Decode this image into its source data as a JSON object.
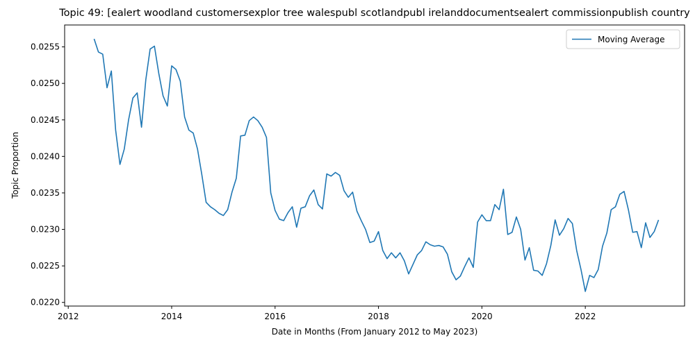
{
  "chart_data": {
    "type": "line",
    "title": "Topic 49: [ealert woodland customersexplor tree walespubl scotlandpubl irelanddocumentsealert commissionpublish country",
    "xlabel": "Date in Months (From January 2012 to May 2023)",
    "ylabel": "Topic Proportion",
    "xlim": [
      2011.93,
      2023.92
    ],
    "ylim": [
      0.02195,
      0.0258
    ],
    "x_ticks": [
      2012,
      2014,
      2016,
      2018,
      2020,
      2022
    ],
    "x_tick_labels": [
      "2012",
      "2014",
      "2016",
      "2018",
      "2020",
      "2022"
    ],
    "y_ticks": [
      0.022,
      0.0225,
      0.023,
      0.0235,
      0.024,
      0.0245,
      0.025,
      0.0255
    ],
    "y_tick_labels": [
      "0.0220",
      "0.0225",
      "0.0230",
      "0.0235",
      "0.0240",
      "0.0245",
      "0.0250",
      "0.0255"
    ],
    "grid": false,
    "legend_position": "top-right",
    "line_color": "#1f77b4",
    "series": [
      {
        "name": "Moving Average",
        "start_year": 2012,
        "start_month": 7,
        "values": [
          0.02561,
          0.02543,
          0.0254,
          0.02494,
          0.02517,
          0.02436,
          0.02389,
          0.0241,
          0.0245,
          0.0248,
          0.02487,
          0.0244,
          0.02505,
          0.02547,
          0.02551,
          0.02514,
          0.02483,
          0.02469,
          0.02524,
          0.02519,
          0.02503,
          0.02454,
          0.02436,
          0.02432,
          0.0241,
          0.02375,
          0.02337,
          0.02331,
          0.02327,
          0.02322,
          0.02319,
          0.02327,
          0.02351,
          0.0237,
          0.02428,
          0.02429,
          0.02449,
          0.02454,
          0.02449,
          0.0244,
          0.02426,
          0.0235,
          0.02326,
          0.02314,
          0.02312,
          0.02323,
          0.02331,
          0.02303,
          0.02329,
          0.02331,
          0.02346,
          0.02354,
          0.02334,
          0.02328,
          0.02376,
          0.02373,
          0.02378,
          0.02374,
          0.02353,
          0.02344,
          0.02351,
          0.02325,
          0.02312,
          0.023,
          0.02282,
          0.02284,
          0.02297,
          0.02271,
          0.0226,
          0.02268,
          0.02261,
          0.02268,
          0.02257,
          0.02239,
          0.02252,
          0.02265,
          0.02271,
          0.02283,
          0.02279,
          0.02277,
          0.02278,
          0.02276,
          0.02266,
          0.02242,
          0.02231,
          0.02236,
          0.02249,
          0.02261,
          0.02248,
          0.0231,
          0.0232,
          0.02312,
          0.02312,
          0.02334,
          0.02327,
          0.02355,
          0.02293,
          0.02296,
          0.02317,
          0.023,
          0.02258,
          0.02275,
          0.02244,
          0.02243,
          0.02237,
          0.02253,
          0.02278,
          0.02313,
          0.02292,
          0.02301,
          0.02315,
          0.02308,
          0.02271,
          0.02245,
          0.02215,
          0.02237,
          0.02234,
          0.02245,
          0.02277,
          0.02295,
          0.02327,
          0.02331,
          0.02348,
          0.02352,
          0.02327,
          0.02296,
          0.02297,
          0.02275,
          0.02309,
          0.02289,
          0.02297,
          0.02313
        ]
      }
    ]
  }
}
